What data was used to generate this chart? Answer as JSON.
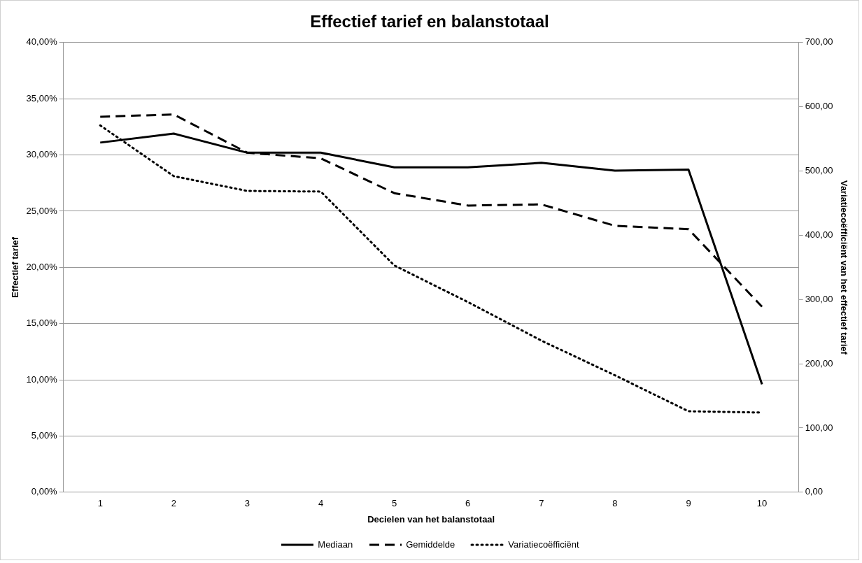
{
  "chart_data": {
    "type": "line",
    "title": "Effectief tarief en balanstotaal",
    "xlabel": "Decielen van het balanstotaal",
    "ylabel": "Effectief tarief",
    "y2label": "Variatiecoëfficiënt van het effectief tarief",
    "categories": [
      "1",
      "2",
      "3",
      "4",
      "5",
      "6",
      "7",
      "8",
      "9",
      "10"
    ],
    "series": [
      {
        "name": "Mediaan",
        "color": "#000000",
        "line_style": "solid",
        "values": [
          31.1,
          31.9,
          30.2,
          30.2,
          28.9,
          28.9,
          29.3,
          28.6,
          28.7,
          9.6
        ]
      },
      {
        "name": "Gemiddelde",
        "color": "#000000",
        "line_style": "dashed",
        "values": [
          33.4,
          33.6,
          30.2,
          29.7,
          26.6,
          25.5,
          25.6,
          23.7,
          23.4,
          16.5
        ]
      },
      {
        "name": "Variatiecoëfficiënt",
        "color": "#000000",
        "line_style": "dotted",
        "axis": "y2",
        "values": [
          571,
          492,
          469,
          468,
          353,
          296,
          236,
          182,
          126,
          124
        ]
      }
    ],
    "ylim": [
      0,
      40
    ],
    "yticks": [
      {
        "value": 0,
        "label": "0,00%"
      },
      {
        "value": 5,
        "label": "5,00%"
      },
      {
        "value": 10,
        "label": "10,00%"
      },
      {
        "value": 15,
        "label": "15,00%"
      },
      {
        "value": 20,
        "label": "20,00%"
      },
      {
        "value": 25,
        "label": "25,00%"
      },
      {
        "value": 30,
        "label": "30,00%"
      },
      {
        "value": 35,
        "label": "35,00%"
      },
      {
        "value": 40,
        "label": "40,00%"
      }
    ],
    "y2lim": [
      0,
      700
    ],
    "y2ticks": [
      {
        "value": 0,
        "label": "0,00"
      },
      {
        "value": 100,
        "label": "100,00"
      },
      {
        "value": 200,
        "label": "200,00"
      },
      {
        "value": 300,
        "label": "300,00"
      },
      {
        "value": 400,
        "label": "400,00"
      },
      {
        "value": 500,
        "label": "500,00"
      },
      {
        "value": 600,
        "label": "600,00"
      },
      {
        "value": 700,
        "label": "700,00"
      }
    ],
    "grid": "y",
    "legend": "bottom",
    "marker": "none"
  }
}
